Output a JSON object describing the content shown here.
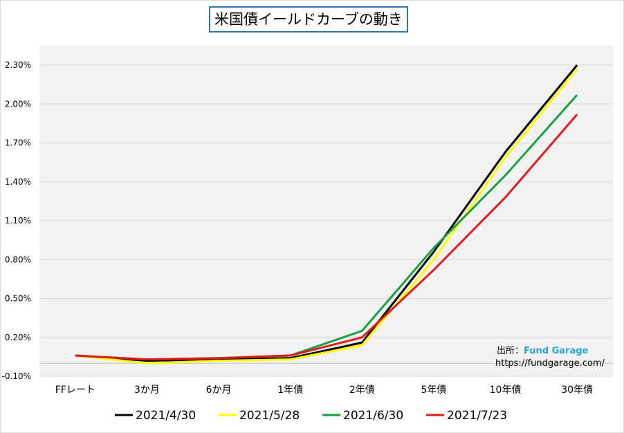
{
  "chart_data": {
    "type": "line",
    "title": "米国債イールドカーブの動き",
    "categories": [
      "FFレート",
      "3か月",
      "6か月",
      "1年債",
      "2年債",
      "5年債",
      "10年債",
      "30年債"
    ],
    "yticks": [
      "-0.10%",
      "0.20%",
      "0.50%",
      "0.80%",
      "1.10%",
      "1.40%",
      "1.70%",
      "2.00%",
      "2.30%"
    ],
    "ylim": [
      -0.1,
      2.45
    ],
    "grid": true,
    "legend_position": "bottom",
    "series": [
      {
        "name": "2021/4/30",
        "color": "#000000",
        "values": [
          0.06,
          0.02,
          0.03,
          0.04,
          0.16,
          0.86,
          1.63,
          2.3
        ]
      },
      {
        "name": "2021/5/28",
        "color": "#ffff00",
        "values": [
          0.06,
          0.0,
          0.02,
          0.03,
          0.14,
          0.8,
          1.59,
          2.27
        ]
      },
      {
        "name": "2021/6/30",
        "color": "#17a043",
        "values": [
          0.06,
          0.03,
          0.04,
          0.06,
          0.25,
          0.89,
          1.45,
          2.07
        ]
      },
      {
        "name": "2021/7/23",
        "color": "#e31a1c",
        "values": [
          0.06,
          0.03,
          0.04,
          0.06,
          0.2,
          0.72,
          1.28,
          1.92
        ]
      }
    ]
  },
  "source": {
    "label": "出所：",
    "brand": "Fund Garage",
    "url": "https://fundgarage.com/"
  }
}
